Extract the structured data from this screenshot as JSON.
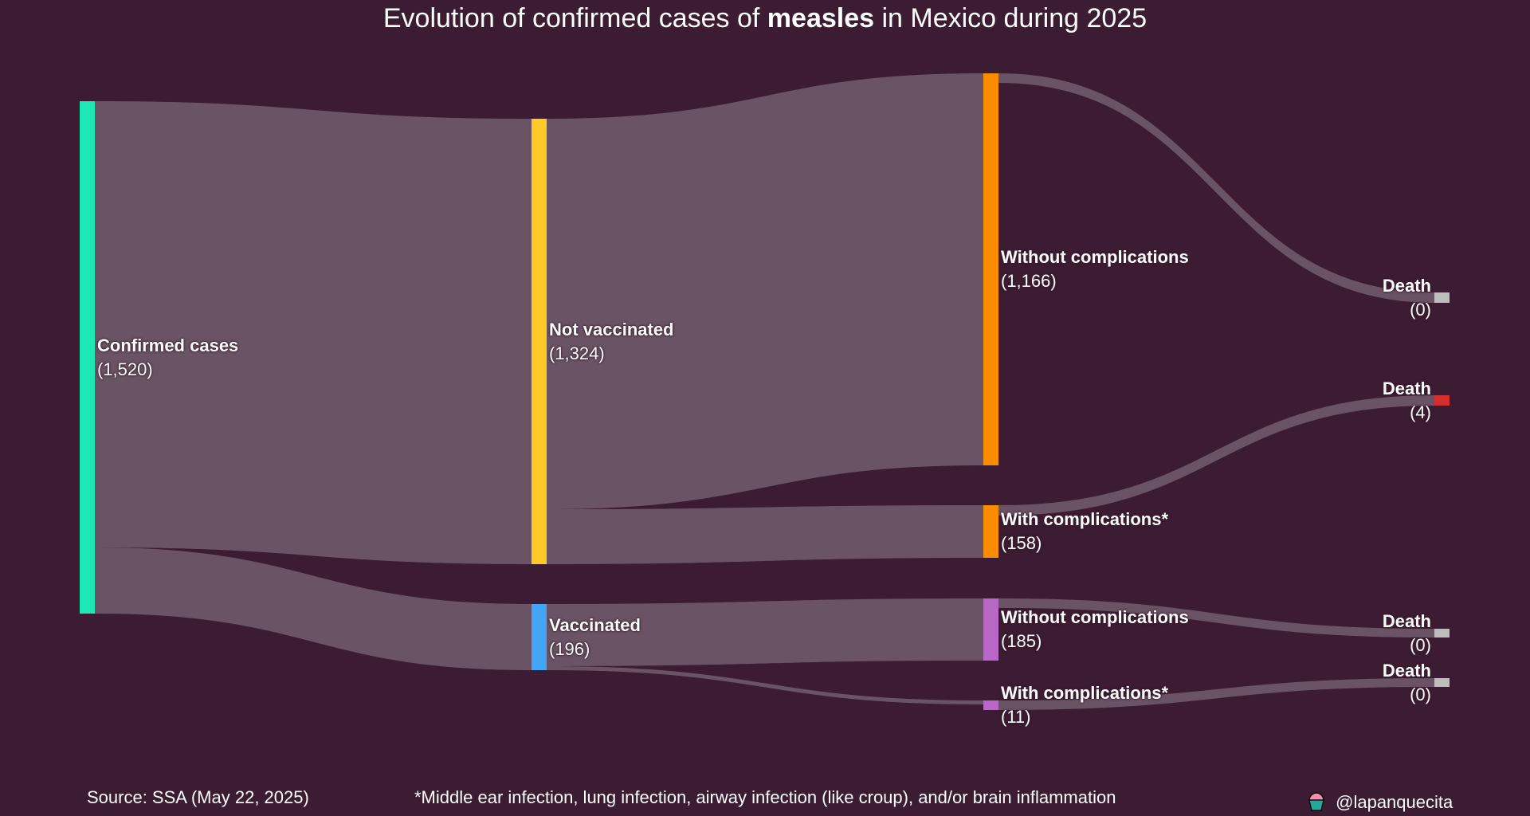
{
  "title": {
    "prefix": "Evolution of confirmed cases of ",
    "bold": "measles",
    "suffix": " in Mexico during 2025"
  },
  "chart_data": {
    "type": "sankey",
    "title": "Evolution of confirmed cases of measles in Mexico during 2025",
    "nodes": [
      {
        "id": "confirmed",
        "name": "Confirmed cases",
        "value": 1520,
        "value_label": "(1,520)",
        "color": "#1de9b6"
      },
      {
        "id": "not_vacc",
        "name": "Not vaccinated",
        "value": 1324,
        "value_label": "(1,324)",
        "color": "#ffca28"
      },
      {
        "id": "vacc",
        "name": "Vaccinated",
        "value": 196,
        "value_label": "(196)",
        "color": "#42a5f5"
      },
      {
        "id": "nv_without",
        "name": "Without complications",
        "value": 1166,
        "value_label": "(1,166)",
        "color": "#fb8c00"
      },
      {
        "id": "nv_with",
        "name": "With complications*",
        "value": 158,
        "value_label": "(158)",
        "color": "#fb8c00"
      },
      {
        "id": "v_without",
        "name": "Without complications",
        "value": 185,
        "value_label": "(185)",
        "color": "#ba68c8"
      },
      {
        "id": "v_with",
        "name": "With complications*",
        "value": 11,
        "value_label": "(11)",
        "color": "#ba68c8"
      },
      {
        "id": "d1",
        "name": "Death",
        "value": 0,
        "value_label": "(0)",
        "color": "#bdbdbd"
      },
      {
        "id": "d2",
        "name": "Death",
        "value": 4,
        "value_label": "(4)",
        "color": "#d32f2f"
      },
      {
        "id": "d3",
        "name": "Death",
        "value": 0,
        "value_label": "(0)",
        "color": "#bdbdbd"
      },
      {
        "id": "d4",
        "name": "Death",
        "value": 0,
        "value_label": "(0)",
        "color": "#bdbdbd"
      }
    ],
    "links": [
      {
        "source": "confirmed",
        "target": "not_vacc",
        "value": 1324
      },
      {
        "source": "confirmed",
        "target": "vacc",
        "value": 196
      },
      {
        "source": "not_vacc",
        "target": "nv_without",
        "value": 1166
      },
      {
        "source": "not_vacc",
        "target": "nv_with",
        "value": 158
      },
      {
        "source": "vacc",
        "target": "v_without",
        "value": 185
      },
      {
        "source": "vacc",
        "target": "v_with",
        "value": 11
      },
      {
        "source": "nv_without",
        "target": "d1",
        "value": 0
      },
      {
        "source": "nv_with",
        "target": "d2",
        "value": 4
      },
      {
        "source": "v_without",
        "target": "d3",
        "value": 0
      },
      {
        "source": "v_with",
        "target": "d4",
        "value": 0
      }
    ],
    "link_color": "#6d5668"
  },
  "footer": {
    "source": "Source: SSA (May 22, 2025)",
    "note": "*Middle ear infection, lung infection, airway infection (like croup), and/or brain inflammation",
    "credit": "@lapanquecita",
    "credit_icon": "cupcake-icon"
  }
}
